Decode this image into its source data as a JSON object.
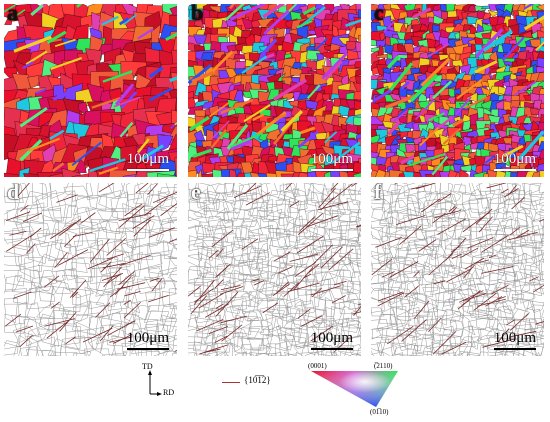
{
  "panels": [
    {
      "letter": "a",
      "scale_label": "100μm",
      "kind": "orientation_map"
    },
    {
      "letter": "b",
      "scale_label": "100μm",
      "kind": "orientation_map"
    },
    {
      "letter": "c",
      "scale_label": "100μm",
      "kind": "orientation_map"
    },
    {
      "letter": "d",
      "scale_label": "100μm",
      "kind": "boundary_map"
    },
    {
      "letter": "e",
      "scale_label": "100μm",
      "kind": "boundary_map"
    },
    {
      "letter": "f",
      "scale_label": "100μm",
      "kind": "boundary_map"
    }
  ],
  "axes": {
    "up_label": "TD",
    "right_label": "RD"
  },
  "legend": {
    "twin_label": "{10̅1̅2}",
    "twin_line_color": "#a33333"
  },
  "ipf_key": {
    "top_left": "(0001)",
    "top_right": "(̅2110)",
    "bottom": "(01̅10)"
  },
  "colors": {
    "red": "#e8102a",
    "green": "#2ee55a",
    "blue": "#2b4ff2",
    "boundary": "#7a2a2a"
  }
}
